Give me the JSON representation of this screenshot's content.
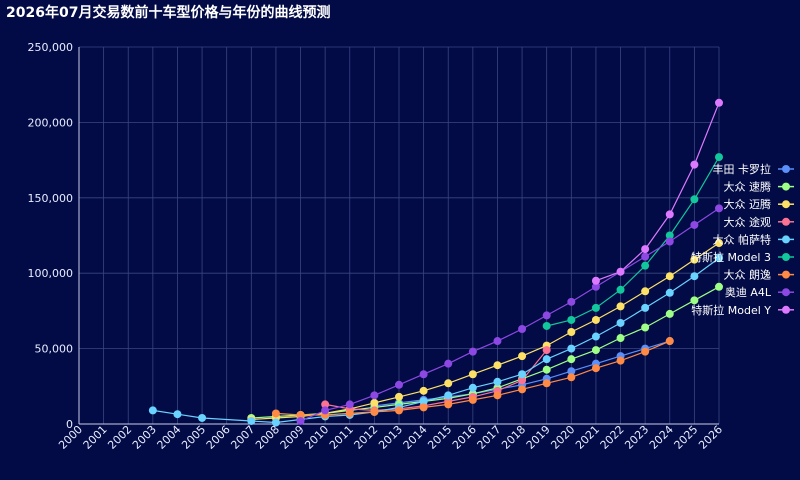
{
  "chart_data": {
    "type": "line",
    "title": "2026年07月交易数前十车型价格与年份的曲线预测",
    "xlabel": "",
    "ylabel": "",
    "x": [
      "2000",
      "2001",
      "2002",
      "2003",
      "2004",
      "2005",
      "2006",
      "2007",
      "2008",
      "2009",
      "2010",
      "2011",
      "2012",
      "2013",
      "2014",
      "2015",
      "2016",
      "2017",
      "2018",
      "2019",
      "2020",
      "2021",
      "2022",
      "2023",
      "2024",
      "2025",
      "2026"
    ],
    "ylim": [
      0,
      250000
    ],
    "yticks": [
      0,
      50000,
      100000,
      150000,
      200000,
      250000
    ],
    "ytick_labels": [
      "0",
      "50,000",
      "100,000",
      "150,000",
      "200,000",
      "250,000"
    ],
    "grid": true,
    "legend_position": "right",
    "series": [
      {
        "name": "丰田 卡罗拉",
        "color": "#5b8ff9",
        "values": [
          null,
          null,
          null,
          null,
          null,
          null,
          null,
          null,
          null,
          null,
          null,
          null,
          12000,
          14000,
          16000,
          18000,
          20000,
          23000,
          26000,
          30000,
          35000,
          40000,
          45000,
          50000,
          55000,
          null,
          null
        ]
      },
      {
        "name": "大众 速腾",
        "color": "#9dff86",
        "values": [
          null,
          null,
          null,
          null,
          null,
          null,
          null,
          4000,
          5000,
          6000,
          7000,
          9000,
          11000,
          13000,
          15000,
          17000,
          20000,
          24000,
          30000,
          36000,
          43000,
          49000,
          57000,
          64000,
          73000,
          82000,
          91000
        ]
      },
      {
        "name": "大众 迈腾",
        "color": "#fde166",
        "values": [
          null,
          null,
          null,
          null,
          null,
          null,
          null,
          3000,
          4000,
          5000,
          7000,
          10000,
          14000,
          18000,
          22000,
          27000,
          33000,
          39000,
          45000,
          52000,
          61000,
          69000,
          78000,
          88000,
          98000,
          109000,
          120000
        ]
      },
      {
        "name": "大众 途观",
        "color": "#fb7293",
        "values": [
          null,
          null,
          null,
          null,
          null,
          null,
          null,
          null,
          null,
          null,
          13000,
          10000,
          9000,
          10000,
          12000,
          15000,
          18000,
          22000,
          29000,
          49000,
          null,
          null,
          null,
          null,
          null,
          null,
          null
        ]
      },
      {
        "name": "大众 帕萨特",
        "color": "#69d2ff",
        "values": [
          null,
          null,
          null,
          9000,
          6500,
          4000,
          null,
          2000,
          1000,
          3000,
          5000,
          6000,
          8000,
          11000,
          15000,
          19000,
          24000,
          28000,
          33000,
          43000,
          50000,
          58000,
          67000,
          77000,
          87000,
          98000,
          110000
        ]
      },
      {
        "name": "特斯拉 Model 3",
        "color": "#11c79b",
        "values": [
          null,
          null,
          null,
          null,
          null,
          null,
          null,
          null,
          null,
          null,
          null,
          null,
          null,
          null,
          null,
          null,
          null,
          null,
          null,
          65000,
          69000,
          77000,
          89000,
          105000,
          125000,
          149000,
          177000
        ]
      },
      {
        "name": "大众 朗逸",
        "color": "#ff8a45",
        "values": [
          null,
          null,
          null,
          null,
          null,
          null,
          null,
          null,
          7000,
          6000,
          6000,
          7000,
          8000,
          9000,
          11000,
          13000,
          16000,
          19000,
          23000,
          27000,
          31000,
          37000,
          42000,
          48000,
          55000,
          null,
          null
        ]
      },
      {
        "name": "奥迪 A4L",
        "color": "#8d48e3",
        "values": [
          null,
          null,
          null,
          null,
          null,
          null,
          null,
          null,
          null,
          2000,
          9000,
          13000,
          19000,
          26000,
          33000,
          40000,
          48000,
          55000,
          63000,
          72000,
          81000,
          91000,
          101000,
          111000,
          121000,
          132000,
          143000
        ]
      },
      {
        "name": "特斯拉 Model Y",
        "color": "#dd79ff",
        "values": [
          null,
          null,
          null,
          null,
          null,
          null,
          null,
          null,
          null,
          null,
          null,
          null,
          null,
          null,
          null,
          null,
          null,
          null,
          null,
          null,
          null,
          95000,
          101000,
          116000,
          139000,
          172000,
          213000
        ]
      }
    ]
  }
}
